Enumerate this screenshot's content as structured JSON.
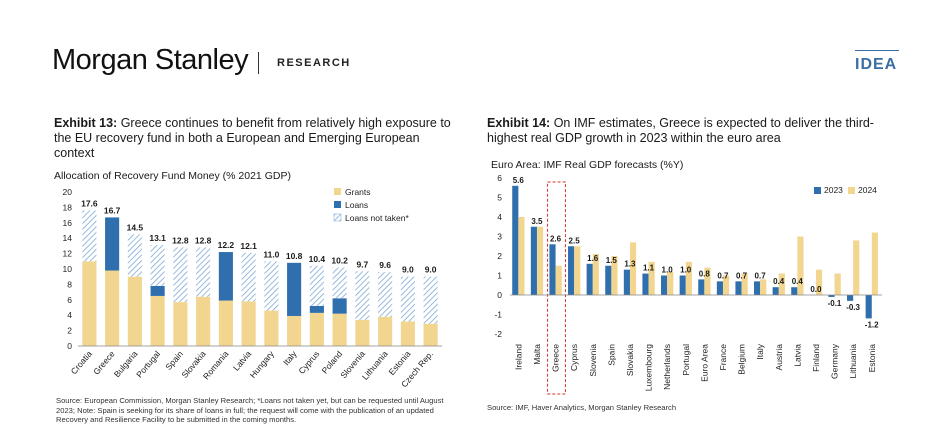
{
  "header": {
    "brand": "Morgan Stanley",
    "section": "RESEARCH",
    "badge": "IDEA"
  },
  "exhibit13": {
    "label": "Exhibit 13:",
    "title": "Greece continues to benefit from relatively high exposure to the EU recovery fund in both a European and Emerging European context",
    "subtitle": "Allocation of Recovery Fund Money (% 2021 GDP)",
    "source": "Source: European Commission, Morgan Stanley Research; *Loans not taken yet, but can be requested until August 2023; Note: Spain is seeking for its share of loans in full; the request will come with the publication of an updated Recovery and Resilience Facility to be submitted in the coming months."
  },
  "exhibit14": {
    "label": "Exhibit 14:",
    "title": "On IMF estimates, Greece is expected to deliver the third-highest real GDP growth in 2023 within the euro area",
    "subtitle": "Euro Area: IMF Real GDP forecasts (%Y)",
    "source": "Source: IMF, Haver Analytics, Morgan Stanley Research"
  },
  "chart_data": [
    {
      "type": "bar",
      "stacked": true,
      "categories": [
        "Croatia",
        "Greece",
        "Bulgaria",
        "Portugal",
        "Spain",
        "Slovakia",
        "Romania",
        "Latvia",
        "Hungary",
        "Italy",
        "Cyprus",
        "Poland",
        "Slovenia",
        "Lithuania",
        "Estonia",
        "Czech Rep."
      ],
      "series": [
        {
          "name": "Grants",
          "values": [
            11.0,
            9.8,
            9.0,
            6.5,
            5.7,
            6.4,
            5.9,
            5.8,
            4.6,
            3.9,
            4.3,
            4.2,
            3.4,
            3.8,
            3.2,
            2.9
          ],
          "color": "#f2d58e"
        },
        {
          "name": "Loans",
          "values": [
            0,
            6.9,
            0,
            1.3,
            0,
            0,
            6.3,
            0,
            0,
            6.9,
            0.9,
            2.0,
            0,
            0,
            0,
            0
          ],
          "color": "#2f6fae"
        },
        {
          "name": "Loans not taken*",
          "values": [
            6.6,
            0,
            5.5,
            5.3,
            7.1,
            6.4,
            0,
            6.3,
            6.4,
            0,
            5.2,
            4.0,
            6.3,
            5.8,
            5.8,
            6.1
          ],
          "color": "#9fbfdf"
        }
      ],
      "totals": [
        "17.6",
        "16.7",
        "14.5",
        "13.1",
        "12.8",
        "12.8",
        "12.2",
        "12.1",
        "11.0",
        "10.8",
        "10.4",
        "10.2",
        "9.7",
        "9.6",
        "9.0",
        "9.0"
      ],
      "ylim": [
        0,
        20
      ],
      "yticks": [
        "0",
        "2",
        "4",
        "6",
        "8",
        "10",
        "12",
        "14",
        "16",
        "18",
        "20"
      ],
      "legend_position": "top-right"
    },
    {
      "type": "bar",
      "categories": [
        "Ireland",
        "Malta",
        "Greece",
        "Cyprus",
        "Slovenia",
        "Spain",
        "Slovakia",
        "Luxembourg",
        "Netherlands",
        "Portugal",
        "Euro Area",
        "France",
        "Belgium",
        "Italy",
        "Austria",
        "Latvia",
        "Finland",
        "Germany",
        "Lithuania",
        "Estonia"
      ],
      "series": [
        {
          "name": "2023",
          "values": [
            5.6,
            3.5,
            2.6,
            2.5,
            1.6,
            1.5,
            1.3,
            1.1,
            1.0,
            1.0,
            0.8,
            0.7,
            0.7,
            0.7,
            0.4,
            0.4,
            0.0,
            -0.1,
            -0.3,
            -1.2
          ],
          "color": "#2f6fae"
        },
        {
          "name": "2024",
          "values": [
            4.0,
            3.5,
            1.5,
            2.5,
            2.1,
            2.0,
            2.7,
            1.7,
            1.2,
            1.7,
            1.4,
            1.0,
            1.1,
            0.8,
            1.1,
            3.0,
            1.3,
            1.1,
            2.8,
            3.2
          ],
          "color": "#f2d58e"
        }
      ],
      "labels_2023": [
        "5.6",
        "3.5",
        "2.6",
        "2.5",
        "1.6",
        "1.5",
        "1.3",
        "1.1",
        "1.0",
        "1.0",
        "0.8",
        "0.7",
        "0.7",
        "0.7",
        "0.4",
        "0.4",
        "0.0",
        "-0.1",
        "-0.3",
        "-1.2"
      ],
      "ylim": [
        -2,
        6
      ],
      "yticks": [
        "-2",
        "-1",
        "0",
        "1",
        "2",
        "3",
        "4",
        "5",
        "6"
      ],
      "highlight": "Greece",
      "legend_position": "top-right"
    }
  ]
}
